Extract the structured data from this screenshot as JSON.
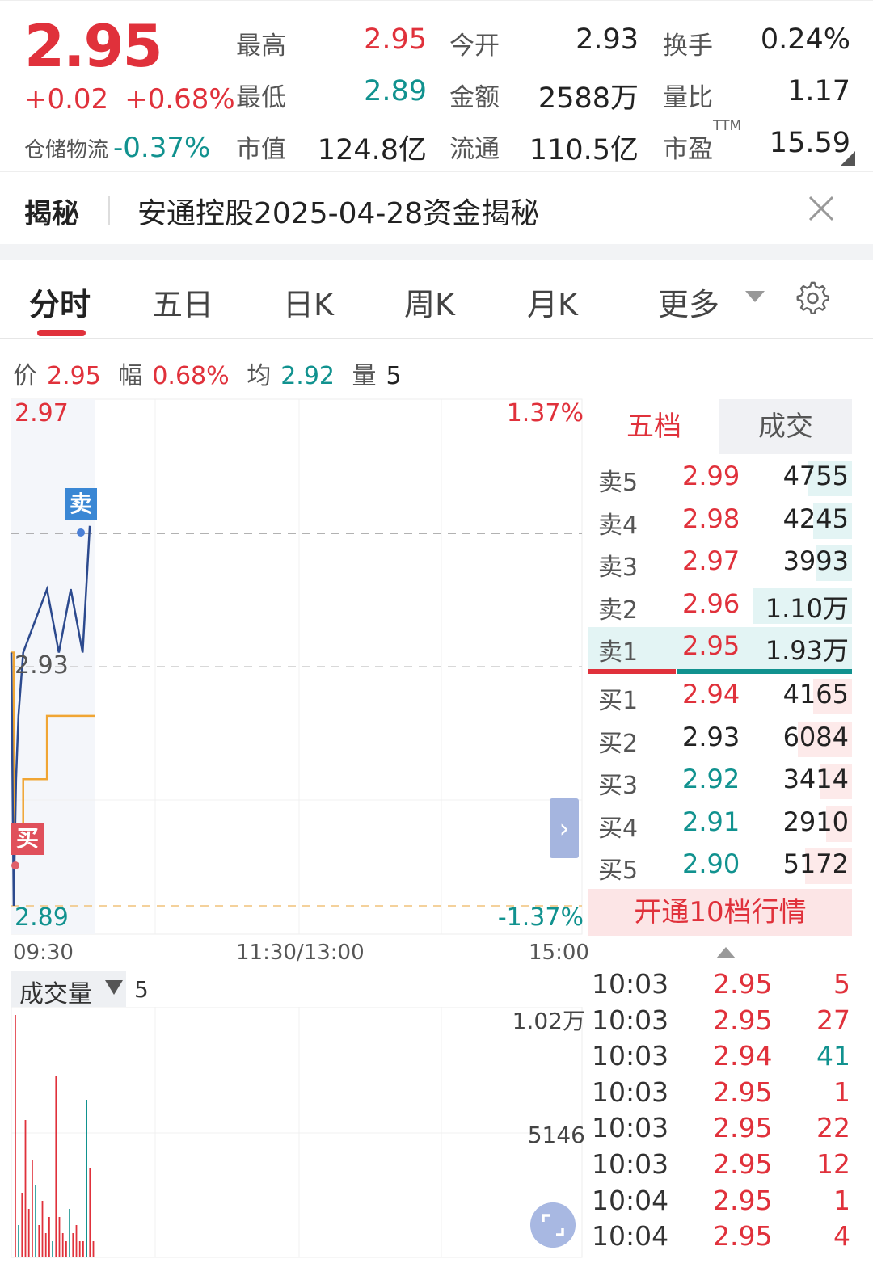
{
  "header": {
    "price": "2.95",
    "change": "+0.02",
    "change_pct": "+0.68%",
    "sector_name": "仓储物流",
    "sector_pct": "-0.37%",
    "stats": [
      {
        "label": "最高",
        "value": "2.95",
        "color": "red"
      },
      {
        "label": "今开",
        "value": "2.93",
        "color": "blk"
      },
      {
        "label": "换手",
        "value": "0.24%",
        "color": "blk"
      },
      {
        "label": "最低",
        "value": "2.89",
        "color": "green"
      },
      {
        "label": "金额",
        "value": "2588万",
        "color": "blk"
      },
      {
        "label": "量比",
        "value": "1.17",
        "color": "blk"
      },
      {
        "label": "市值",
        "value": "124.8亿",
        "color": "blk"
      },
      {
        "label": "流通",
        "value": "110.5亿",
        "color": "blk"
      },
      {
        "label": "市盈",
        "value": "15.59",
        "color": "blk"
      }
    ],
    "ttm": "TTM"
  },
  "banner": {
    "tag": "揭秘",
    "text": "安通控股2025-04-28资金揭秘"
  },
  "tabs": [
    {
      "label": "分时",
      "active": true
    },
    {
      "label": "五日",
      "active": false
    },
    {
      "label": "日K",
      "active": false
    },
    {
      "label": "周K",
      "active": false
    },
    {
      "label": "月K",
      "active": false
    },
    {
      "label": "更多",
      "active": false
    }
  ],
  "info_line": {
    "price_label": "价",
    "price": "2.95",
    "range_label": "幅",
    "range": "0.68%",
    "avg_label": "均",
    "avg": "2.92",
    "vol_label": "量",
    "vol": "5"
  },
  "chart": {
    "y_max": "2.97",
    "y_mid": "2.93",
    "y_min": "2.89",
    "pct_max": "1.37%",
    "pct_min": "-1.37%",
    "time_start": "09:30",
    "time_mid": "11:30/13:00",
    "time_end": "15:00",
    "sell_tag": "卖",
    "buy_tag": "买",
    "expand_glyph": "›"
  },
  "chart_data": {
    "type": "line",
    "y_range": [
      2.89,
      2.97
    ],
    "price_series": [
      {
        "t": "09:30",
        "v": 2.93
      },
      {
        "t": "09:31",
        "v": 2.89
      },
      {
        "t": "09:32",
        "v": 2.91
      },
      {
        "t": "09:33",
        "v": 2.92
      },
      {
        "t": "09:35",
        "v": 2.93
      },
      {
        "t": "09:40",
        "v": 2.935
      },
      {
        "t": "09:45",
        "v": 2.94
      },
      {
        "t": "09:50",
        "v": 2.93
      },
      {
        "t": "09:55",
        "v": 2.94
      },
      {
        "t": "10:00",
        "v": 2.93
      },
      {
        "t": "10:03",
        "v": 2.95
      }
    ],
    "avg_series": [
      {
        "t": "09:30",
        "v": 2.93
      },
      {
        "t": "09:31",
        "v": 2.9
      },
      {
        "t": "09:35",
        "v": 2.91
      },
      {
        "t": "09:45",
        "v": 2.92
      },
      {
        "t": "10:03",
        "v": 2.92
      }
    ],
    "volume": {
      "max_label": "1.02万",
      "mid_label": "5146",
      "title": "成交量",
      "current": "5"
    }
  },
  "order_book": {
    "tab_five": "五档",
    "tab_deal": "成交",
    "asks": [
      {
        "label": "卖5",
        "price": "2.99",
        "vol": "4755",
        "color": "red",
        "bar_frac": 0.25
      },
      {
        "label": "卖4",
        "price": "2.98",
        "vol": "4245",
        "color": "red",
        "bar_frac": 0.22
      },
      {
        "label": "卖3",
        "price": "2.97",
        "vol": "3993",
        "color": "red",
        "bar_frac": 0.21
      },
      {
        "label": "卖2",
        "price": "2.96",
        "vol": "1.10万",
        "color": "red",
        "bar_frac": 0.57
      },
      {
        "label": "卖1",
        "price": "2.95",
        "vol": "1.93万",
        "color": "red",
        "bar_frac": 1.0
      }
    ],
    "bids": [
      {
        "label": "买1",
        "price": "2.94",
        "vol": "4165",
        "color": "red",
        "bar_frac": 0.22
      },
      {
        "label": "买2",
        "price": "2.93",
        "vol": "6084",
        "color": "blk",
        "bar_frac": 0.31
      },
      {
        "label": "买3",
        "price": "2.92",
        "vol": "3414",
        "color": "green",
        "bar_frac": 0.18
      },
      {
        "label": "买4",
        "price": "2.91",
        "vol": "2910",
        "color": "green",
        "bar_frac": 0.15
      },
      {
        "label": "买5",
        "price": "2.90",
        "vol": "5172",
        "color": "green",
        "bar_frac": 0.27
      }
    ],
    "upgrade": "开通10档行情"
  },
  "trades": [
    {
      "time": "10:03",
      "price": "2.95",
      "vol": "5",
      "vol_color": "red"
    },
    {
      "time": "10:03",
      "price": "2.95",
      "vol": "27",
      "vol_color": "red"
    },
    {
      "time": "10:03",
      "price": "2.94",
      "vol": "41",
      "vol_color": "green"
    },
    {
      "time": "10:03",
      "price": "2.95",
      "vol": "1",
      "vol_color": "red"
    },
    {
      "time": "10:03",
      "price": "2.95",
      "vol": "22",
      "vol_color": "red"
    },
    {
      "time": "10:03",
      "price": "2.95",
      "vol": "12",
      "vol_color": "red"
    },
    {
      "time": "10:04",
      "price": "2.95",
      "vol": "1",
      "vol_color": "red"
    },
    {
      "time": "10:04",
      "price": "2.95",
      "vol": "4",
      "vol_color": "red"
    }
  ],
  "colors": {
    "up": "#e0313b",
    "down": "#11928f",
    "price_line": "#2c4a8e",
    "avg_line": "#f0a533",
    "ask_bar": "#e3f4f4",
    "bid_bar": "#fdeaea"
  }
}
